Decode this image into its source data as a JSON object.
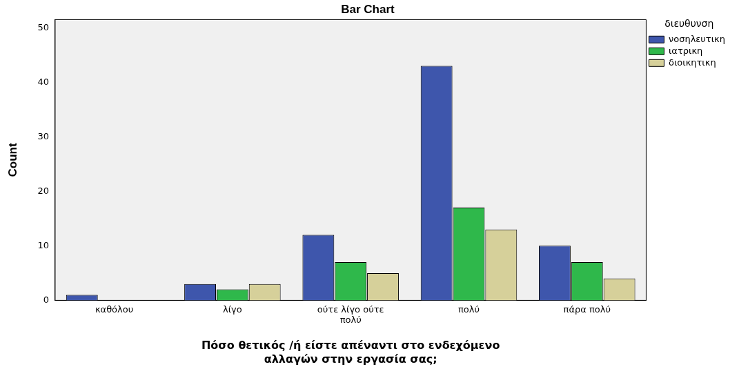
{
  "chart_data": {
    "type": "bar",
    "title": "Bar Chart",
    "xlabel": "Πόσο θετικός /ή είστε απέναντι στο ενδεχόμενο αλλαγών στην εργασία σας;",
    "ylabel": "Count",
    "legend_title": "διευθυνση",
    "categories": [
      "καθόλου",
      "λίγο",
      "ούτε λίγο ούτε πολύ",
      "πολύ",
      "πάρα πολύ"
    ],
    "series": [
      {
        "name": "νοσηλευτικη",
        "color": "#3e56ac",
        "values": [
          1,
          3,
          12,
          43,
          10
        ]
      },
      {
        "name": "ιατρικη",
        "color": "#2fb84b",
        "values": [
          0,
          2,
          7,
          17,
          7
        ]
      },
      {
        "name": "διοικητικη",
        "color": "#d6d09a",
        "values": [
          0,
          3,
          5,
          13,
          4
        ]
      }
    ],
    "ylim": [
      0,
      51.5
    ],
    "yticks": [
      0,
      10,
      20,
      30,
      40,
      50
    ],
    "grid": false,
    "legend": "top right"
  }
}
